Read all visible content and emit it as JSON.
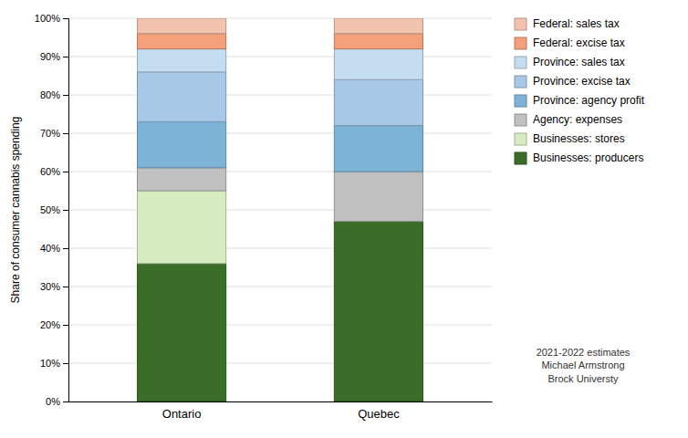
{
  "chart_data": {
    "type": "bar",
    "stacked": true,
    "categories": [
      "Ontario",
      "Quebec"
    ],
    "series": [
      {
        "name": "Businesses: producers",
        "color": "#3a6e28",
        "values": [
          36,
          47
        ]
      },
      {
        "name": "Businesses: stores",
        "color": "#d6edc2",
        "values": [
          19,
          0
        ]
      },
      {
        "name": "Agency: expenses",
        "color": "#c0c0c0",
        "values": [
          6,
          13
        ]
      },
      {
        "name": "Province: agency profit",
        "color": "#7eb3d8",
        "values": [
          12,
          12
        ]
      },
      {
        "name": "Province: excise tax",
        "color": "#a8c8e8",
        "values": [
          13,
          12
        ]
      },
      {
        "name": "Province: sales tax",
        "color": "#c5ddf0",
        "values": [
          6,
          8
        ]
      },
      {
        "name": "Federal: excise tax",
        "color": "#f4a07a",
        "values": [
          4,
          4
        ]
      },
      {
        "name": "Federal: sales tax",
        "color": "#f2c4b0",
        "values": [
          4,
          4
        ]
      }
    ],
    "ylabel": "Share of consumer cannabis spending",
    "ylim": [
      0,
      100
    ],
    "yticks": [
      {
        "value": 0,
        "label": "0%"
      },
      {
        "value": 10,
        "label": "10%"
      },
      {
        "value": 20,
        "label": "20%"
      },
      {
        "value": 30,
        "label": "30%"
      },
      {
        "value": 40,
        "label": "40%"
      },
      {
        "value": 50,
        "label": "50%"
      },
      {
        "value": 60,
        "label": "60%"
      },
      {
        "value": 70,
        "label": "70%"
      },
      {
        "value": 80,
        "label": "80%"
      },
      {
        "value": 90,
        "label": "90%"
      },
      {
        "value": 100,
        "label": "100%"
      }
    ],
    "grid": true,
    "legend": "right",
    "annotation": "2021-2022 estimates\nMichael Armstrong\nBrock Universty"
  }
}
